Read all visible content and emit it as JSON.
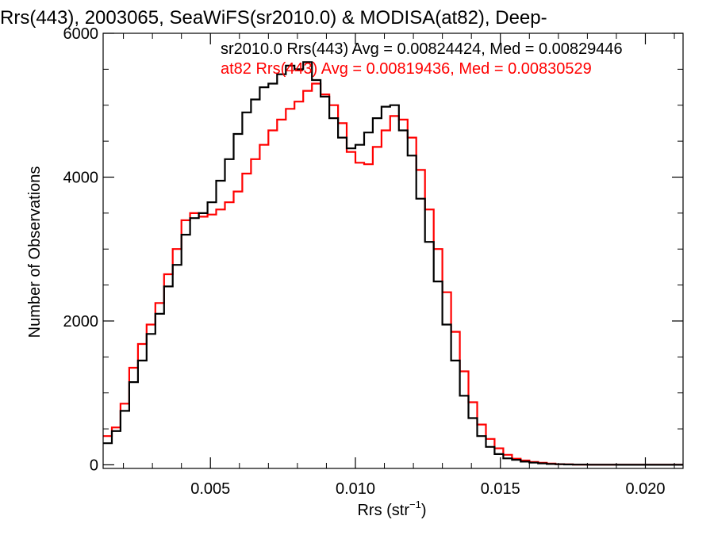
{
  "chart_data": {
    "type": "line",
    "title": "Rrs(443), 2003065, SeaWiFS(sr2010.0) & MODISA(at82), Deep-",
    "xlabel_main": "Rrs (str",
    "xlabel_sup": "−1",
    "xlabel_tail": ")",
    "ylabel": "Number of Observations",
    "xlim": [
      0.0013,
      0.0213
    ],
    "ylim": [
      -50,
      6000
    ],
    "x_ticks": [
      {
        "value": 0.005,
        "label": "0.005"
      },
      {
        "value": 0.01,
        "label": "0.010"
      },
      {
        "value": 0.015,
        "label": "0.015"
      },
      {
        "value": 0.02,
        "label": "0.020"
      }
    ],
    "y_ticks": [
      {
        "value": 0,
        "label": "0"
      },
      {
        "value": 2000,
        "label": "2000"
      },
      {
        "value": 4000,
        "label": "4000"
      },
      {
        "value": 6000,
        "label": "6000"
      }
    ],
    "step_style": "histogram",
    "series": [
      {
        "name": "sr2010.0",
        "legend": "sr2010.0 Rrs(443) Avg = 0.00824424, Med = 0.00829446",
        "color": "#000000",
        "x": [
          0.0013,
          0.0016,
          0.0019,
          0.0022,
          0.0025,
          0.0028,
          0.0031,
          0.0034,
          0.0037,
          0.004,
          0.0043,
          0.0046,
          0.0049,
          0.0052,
          0.0055,
          0.0058,
          0.0061,
          0.0064,
          0.0067,
          0.007,
          0.0073,
          0.0076,
          0.0079,
          0.0082,
          0.0085,
          0.0088,
          0.0091,
          0.0094,
          0.0097,
          0.01,
          0.0103,
          0.0106,
          0.0109,
          0.0112,
          0.0115,
          0.0118,
          0.0121,
          0.0124,
          0.0127,
          0.013,
          0.0133,
          0.0136,
          0.0139,
          0.0142,
          0.0145,
          0.0148,
          0.0151,
          0.0154,
          0.0157,
          0.016,
          0.0163,
          0.0166,
          0.0169,
          0.0172,
          0.0175,
          0.018,
          0.019,
          0.02,
          0.0213
        ],
        "y": [
          300,
          470,
          750,
          1150,
          1450,
          1820,
          2100,
          2480,
          2780,
          3200,
          3430,
          3500,
          3650,
          3950,
          4250,
          4600,
          4900,
          5080,
          5250,
          5300,
          5430,
          5550,
          5500,
          5600,
          5350,
          5120,
          4820,
          4550,
          4400,
          4450,
          4620,
          4820,
          4980,
          5000,
          4650,
          4300,
          3700,
          3100,
          2550,
          1950,
          1450,
          960,
          650,
          400,
          250,
          150,
          90,
          70,
          45,
          30,
          20,
          12,
          8,
          5,
          3,
          2,
          1,
          1,
          0
        ]
      },
      {
        "name": "at82",
        "legend": "at82 Rrs(443) Avg = 0.00819436, Med = 0.00830529",
        "color": "#ff0000",
        "x": [
          0.0013,
          0.0016,
          0.0019,
          0.0022,
          0.0025,
          0.0028,
          0.0031,
          0.0034,
          0.0037,
          0.004,
          0.0043,
          0.0046,
          0.0049,
          0.0052,
          0.0055,
          0.0058,
          0.0061,
          0.0064,
          0.0067,
          0.007,
          0.0073,
          0.0076,
          0.0079,
          0.0082,
          0.0085,
          0.0088,
          0.0091,
          0.0094,
          0.0097,
          0.01,
          0.0103,
          0.0106,
          0.0109,
          0.0112,
          0.0115,
          0.0118,
          0.0121,
          0.0124,
          0.0127,
          0.013,
          0.0133,
          0.0136,
          0.0139,
          0.0142,
          0.0145,
          0.0148,
          0.0151,
          0.0154,
          0.0157,
          0.016,
          0.0163,
          0.0166,
          0.0169,
          0.0172,
          0.0175,
          0.018,
          0.019,
          0.02,
          0.0213
        ],
        "y": [
          400,
          520,
          850,
          1350,
          1680,
          1950,
          2250,
          2650,
          3000,
          3400,
          3500,
          3450,
          3480,
          3550,
          3650,
          3800,
          4050,
          4250,
          4450,
          4650,
          4800,
          4950,
          5050,
          5200,
          5300,
          5150,
          5000,
          4750,
          4350,
          4200,
          4180,
          4420,
          4650,
          4850,
          4800,
          4550,
          4100,
          3550,
          3000,
          2400,
          1850,
          1300,
          870,
          560,
          360,
          230,
          140,
          85,
          60,
          40,
          28,
          18,
          10,
          6,
          3,
          2,
          1,
          1,
          0
        ]
      }
    ]
  }
}
